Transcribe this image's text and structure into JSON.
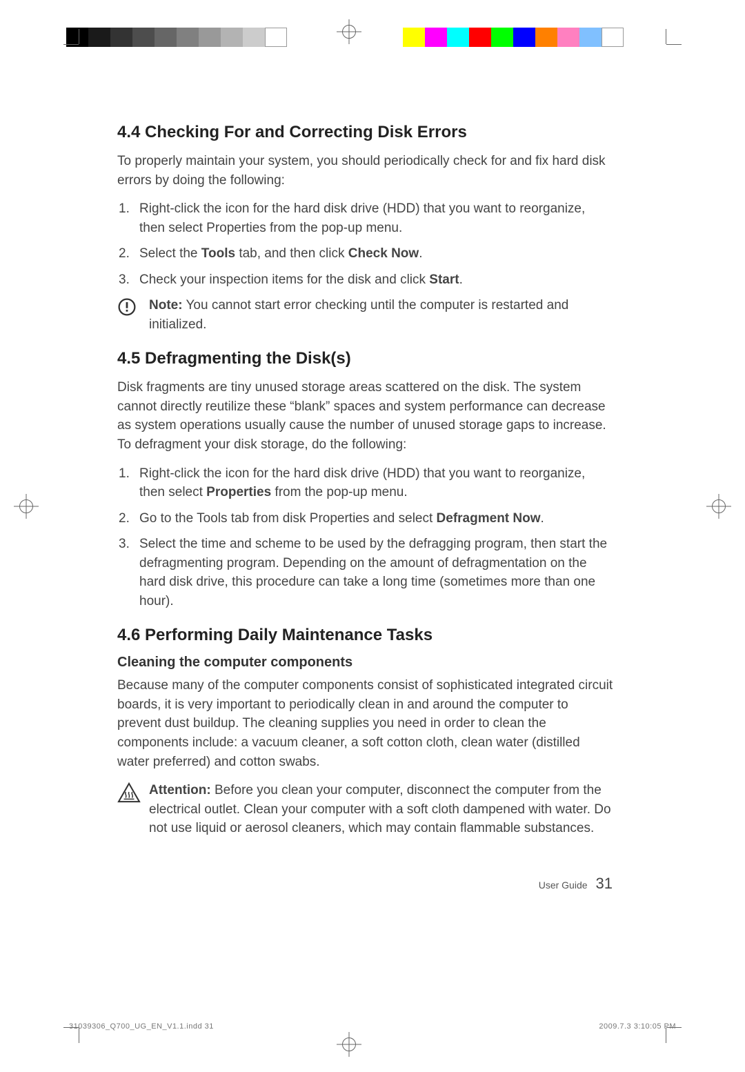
{
  "registration": {
    "grey_swatches": [
      "#000000",
      "#1a1a1a",
      "#333333",
      "#4d4d4d",
      "#666666",
      "#808080",
      "#999999",
      "#b3b3b3",
      "#cccccc",
      "#ffffff"
    ],
    "color_swatches": [
      "#ffff00",
      "#ff00ff",
      "#00ffff",
      "#ff0000",
      "#00ff00",
      "#0000ff",
      "#ff8000",
      "#ff80c0",
      "#80c0ff",
      "#ffffff"
    ]
  },
  "section44": {
    "heading": "4.4 Checking For and Correcting Disk Errors",
    "intro": "To properly maintain your system, you should periodically check for and fix hard disk errors by doing the following:",
    "items": [
      "Right-click the icon for the hard disk drive (HDD) that you want to reorganize, then select Properties from the pop-up menu.",
      "Select the <b>Tools</b> tab, and then click <b>Check Now</b>.",
      "Check your inspection items for the disk and click <b>Start</b>."
    ],
    "note_label": "Note:",
    "note_text": "You cannot start error checking until the computer is restarted and initialized."
  },
  "section45": {
    "heading": "4.5 Defragmenting the Disk(s)",
    "intro": "Disk fragments are tiny unused storage areas scattered on the disk. The system cannot directly reutilize these “blank” spaces and system performance can decrease as system operations usually cause the number of unused storage gaps to increase. To defragment your disk storage, do the following:",
    "items": [
      "Right-click the icon for the hard disk drive (HDD) that you want to reorganize, then select <b>Properties</b> from the pop-up menu.",
      "Go to the Tools tab from disk Properties and select <b>Defragment Now</b>.",
      "Select the time and scheme to be used by the defragging program, then start the defragmenting program. Depending on the amount of defragmentation on the hard disk drive, this procedure can take a long time (sometimes more than one hour)."
    ]
  },
  "section46": {
    "heading": "4.6 Performing Daily Maintenance Tasks",
    "sub1": "Cleaning the computer components",
    "para1": "Because many of the computer components consist of sophisticated integrated circuit boards, it is very important to periodically clean in and around the computer to prevent dust buildup. The cleaning supplies you need in order to clean the components include: a vacuum cleaner, a soft cotton cloth, clean water (distilled water preferred) and cotton swabs.",
    "attn_label": "Attention:",
    "attn_text": "Before you clean your computer, disconnect the computer from the electrical outlet. Clean your computer with a soft cloth dampened with water. Do not use liquid or aerosol cleaners, which may contain flammable substances."
  },
  "footer": {
    "label": "User Guide",
    "page_number": "31"
  },
  "imprint": {
    "left": "31039306_Q700_UG_EN_V1.1.indd   31",
    "right": "2009.7.3   3:10:05 PM"
  },
  "style": {
    "heading_fontsize": 24,
    "body_fontsize": 19,
    "subheading_fontsize": 20,
    "text_color": "#444444",
    "heading_color": "#222222",
    "background_color": "#ffffff"
  }
}
